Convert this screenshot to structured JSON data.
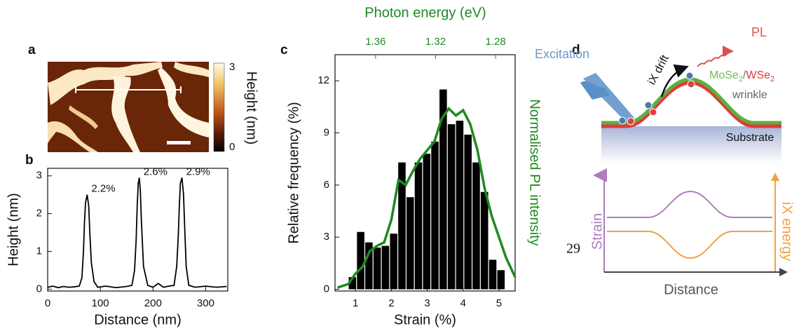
{
  "panel_labels": [
    "a",
    "b",
    "c",
    "d"
  ],
  "panel_a": {
    "colorbar_ticks": [
      "3",
      "0"
    ],
    "colorbar_label": "Height (nm)"
  },
  "chart_data": [
    {
      "type": "line",
      "x_label": "Distance (nm)",
      "y_label": "Height (nm)",
      "x": [
        0,
        10,
        20,
        30,
        40,
        50,
        60,
        65,
        68,
        70,
        72,
        75,
        78,
        80,
        83,
        88,
        95,
        110,
        130,
        150,
        160,
        165,
        168,
        170,
        172,
        174,
        176,
        178,
        182,
        190,
        200,
        210,
        220,
        230,
        240,
        245,
        248,
        250,
        252,
        255,
        258,
        260,
        263,
        268,
        280,
        300,
        320,
        340
      ],
      "series": [
        {
          "color": "#000000",
          "values": [
            0.05,
            0.08,
            0.04,
            0.07,
            0.05,
            0.06,
            0.08,
            0.3,
            1.0,
            1.8,
            2.3,
            2.5,
            2.2,
            1.5,
            0.7,
            0.2,
            0.05,
            0.08,
            0.04,
            0.07,
            0.1,
            0.5,
            1.3,
            2.2,
            2.8,
            2.95,
            2.6,
            1.8,
            0.6,
            0.1,
            0.05,
            0.15,
            0.05,
            0.08,
            0.1,
            0.6,
            1.4,
            2.2,
            2.8,
            2.95,
            2.5,
            1.7,
            0.6,
            0.1,
            0.05,
            0.08,
            0.05,
            0.07
          ]
        }
      ],
      "annotations": [
        "2.2%",
        "2.6%",
        "2.9%"
      ],
      "xlim": [
        0,
        342
      ],
      "ylim": [
        -0.05,
        3.2
      ],
      "xticks": [
        0,
        100,
        200,
        300
      ],
      "yticks": [
        0,
        1,
        2,
        3
      ]
    },
    {
      "type": "histogram",
      "x_label": "Strain (%)",
      "y_label": "Relative frequency (%)",
      "y2_label": "Normalised PL intensity",
      "x2_label": "Photon energy (eV)",
      "bins": [
        0.8,
        1.03,
        1.26,
        1.49,
        1.72,
        1.95,
        2.18,
        2.41,
        2.64,
        2.87,
        3.1,
        3.33,
        3.56,
        3.79,
        4.02,
        4.25,
        4.48,
        4.71,
        4.94,
        5.17
      ],
      "values": [
        0.7,
        3.3,
        2.7,
        2.4,
        2.5,
        3.2,
        7.3,
        5.3,
        7.3,
        7.8,
        8.5,
        11.5,
        9.5,
        9.7,
        8.9,
        7.3,
        5.6,
        1.7,
        1.1
      ],
      "color": "#000000",
      "line": {
        "color": "#1f8a1f",
        "x": [
          0.5,
          0.8,
          1.0,
          1.2,
          1.4,
          1.6,
          1.8,
          2.0,
          2.2,
          2.4,
          2.6,
          2.8,
          3.0,
          3.2,
          3.4,
          3.6,
          3.8,
          4.0,
          4.2,
          4.4,
          4.6,
          4.8,
          5.0,
          5.2,
          5.45
        ],
        "values": [
          0.1,
          0.3,
          0.9,
          1.3,
          2.2,
          2.5,
          2.7,
          4.0,
          6.3,
          6.0,
          6.8,
          7.5,
          8.0,
          8.5,
          9.8,
          10.4,
          10.0,
          10.3,
          9.5,
          8.0,
          5.8,
          4.2,
          3.0,
          1.8,
          0.7
        ]
      },
      "xlim": [
        0.43,
        5.45
      ],
      "ylim": [
        -0.1,
        13.5
      ],
      "xticks": [
        1,
        2,
        3,
        4,
        5
      ],
      "yticks": [
        0,
        3,
        6,
        9,
        12
      ],
      "x2lim": [
        1.387,
        1.267
      ],
      "x2ticks": [
        1.36,
        1.32,
        1.28
      ]
    }
  ],
  "panel_d": {
    "pl": "PL",
    "excitation": "Excitation",
    "drift": "iX drift",
    "material": {
      "a": "MoSe",
      "a_sub": "2",
      "sep": "/",
      "b": "WSe",
      "b_sub": "2"
    },
    "wrinkle": "wrinkle",
    "substrate": "Substrate",
    "strain": "Strain",
    "energy": "iX energy",
    "distance": "Distance",
    "stray": "29"
  }
}
